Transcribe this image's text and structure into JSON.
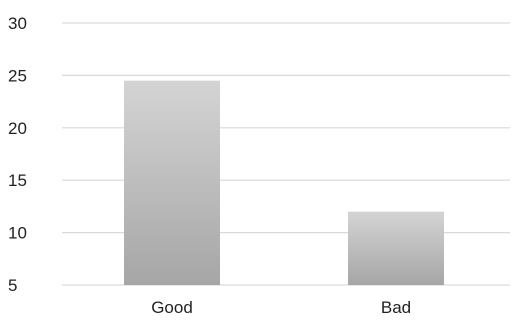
{
  "chart_data": {
    "type": "bar",
    "categories": [
      "Good",
      "Bad"
    ],
    "values": [
      24.5,
      12
    ],
    "title": "",
    "xlabel": "",
    "ylabel": "",
    "ylim": [
      5,
      30
    ],
    "yticks": [
      5,
      10,
      15,
      20,
      25,
      30
    ],
    "grid": true,
    "legend": "none",
    "colors": {
      "bar_top": "#d4d4d4",
      "bar_bottom": "#a6a6a6",
      "grid": "#d9d9d9",
      "text": "#222222"
    }
  }
}
